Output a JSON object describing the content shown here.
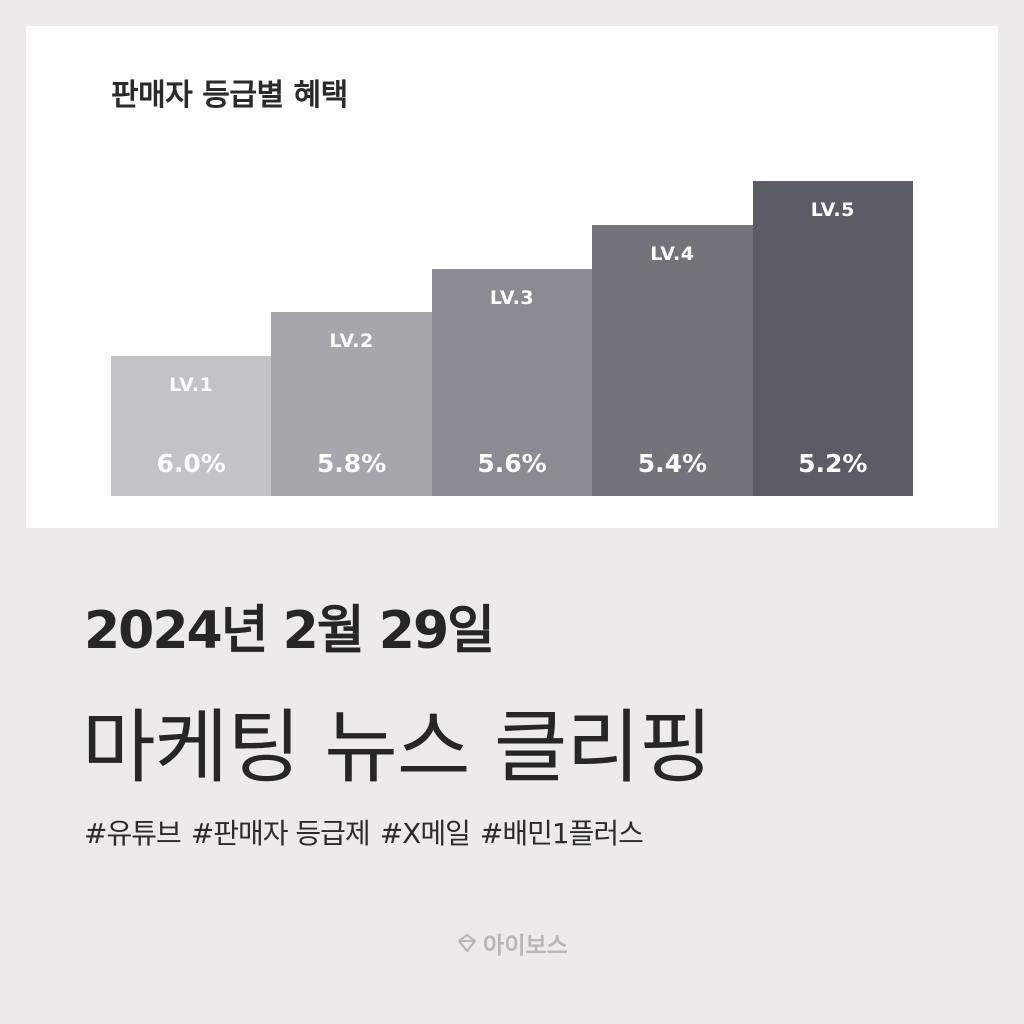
{
  "chart_data": {
    "type": "bar",
    "title": "판매자 등급별 혜택",
    "categories": [
      "LV.1",
      "LV.2",
      "LV.3",
      "LV.4",
      "LV.5"
    ],
    "values": [
      "6.0%",
      "5.8%",
      "5.6%",
      "5.4%",
      "5.2%"
    ],
    "tiers": [
      1,
      2,
      3,
      4,
      5
    ],
    "bar_colors": [
      "#c3c3c6",
      "#a6a7ac",
      "#8b8c93",
      "#72747c",
      "#5a5c66"
    ],
    "xlabel": "",
    "ylabel": "",
    "grid": false,
    "legend": "none"
  },
  "post": {
    "date": "2024년 2월 29일",
    "heading": "마케팅 뉴스 클리핑",
    "tags": [
      "#유튜브",
      "#판매자 등급제",
      "#X메일",
      "#배민1플러스"
    ],
    "brand": "아이보스"
  },
  "colors": {
    "background": "#ecebea",
    "card": "#ffffff",
    "text": "#262626",
    "logo": "#b8b7b5"
  }
}
